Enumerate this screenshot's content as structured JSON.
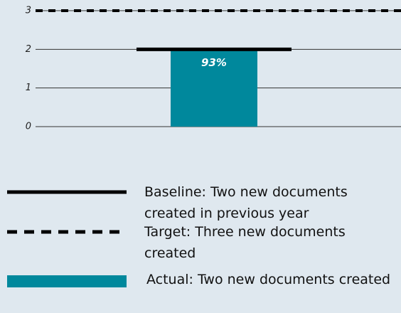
{
  "chart_data": {
    "type": "bar",
    "categories": [
      null
    ],
    "ylim": [
      0,
      3
    ],
    "yticks": [
      0,
      1,
      2,
      3
    ],
    "grid": true,
    "series": [
      {
        "name": "Actual: Two new documents created",
        "color": "#00889c",
        "values": [
          2
        ]
      }
    ],
    "baseline": {
      "name": "Baseline: Two new documents created in previous year",
      "color": "#000000",
      "value": 2
    },
    "target": {
      "name": "Target: Three new documents created",
      "color": "#000000",
      "value": 3,
      "style": "dashed"
    },
    "annotations": [
      "93%"
    ]
  }
}
